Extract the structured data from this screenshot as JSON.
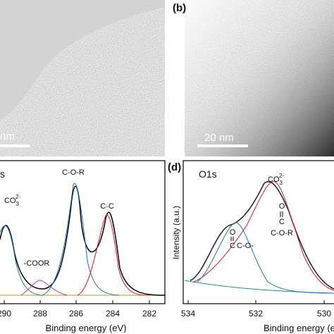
{
  "panels": [
    {
      "scale_bar": "nm"
    },
    {
      "label": "(b)",
      "scale_bar": "20 nm"
    },
    {
      "title": "s",
      "x_label": "Binding energy (eV)",
      "x_ticks": [
        "290",
        "288",
        "286",
        "284",
        "282"
      ],
      "peaks": [
        "C-O-R",
        "C-C",
        "-COOR"
      ],
      "carbonate": {
        "base": "CO",
        "sub": "3",
        "sup": "2-"
      }
    },
    {
      "label": "(d)",
      "title": "O1s",
      "y_label": "Intensity (a.u.)",
      "x_label": "Binding energy (eV",
      "x_ticks": [
        "534",
        "532",
        "530"
      ],
      "carbonate": {
        "base": "CO",
        "sub": "3",
        "sup": "2-"
      },
      "peak_a": {
        "top": "O",
        "mid": "C",
        "bottom": "C-O-R"
      },
      "peak_b": {
        "top": "O",
        "mid": "C",
        "side": "C-O-"
      }
    }
  ]
}
